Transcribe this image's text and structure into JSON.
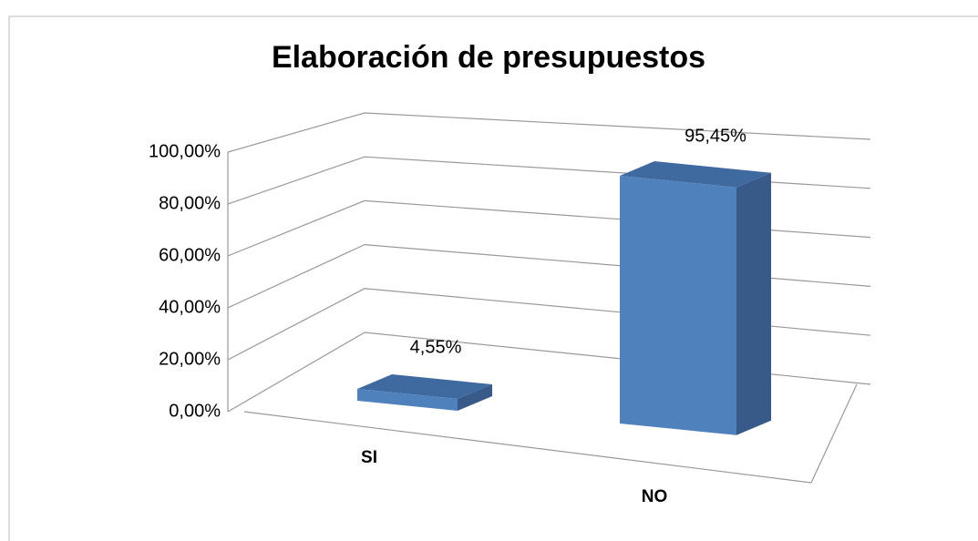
{
  "chart_data": {
    "type": "bar3d",
    "title": "Elaboración de presupuestos",
    "categories": [
      "SI",
      "NO"
    ],
    "values": [
      4.55,
      95.45
    ],
    "value_labels": [
      "4,55%",
      "95,45%"
    ],
    "color": "#4f81bd",
    "ylim": [
      0,
      100
    ],
    "yticks": [
      {
        "value": 0,
        "label": "0,00%"
      },
      {
        "value": 20,
        "label": "20,00%"
      },
      {
        "value": 40,
        "label": "40,00%"
      },
      {
        "value": 60,
        "label": "60,00%"
      },
      {
        "value": 80,
        "label": "80,00%"
      },
      {
        "value": 100,
        "label": "100,00%"
      }
    ],
    "grid": true
  }
}
